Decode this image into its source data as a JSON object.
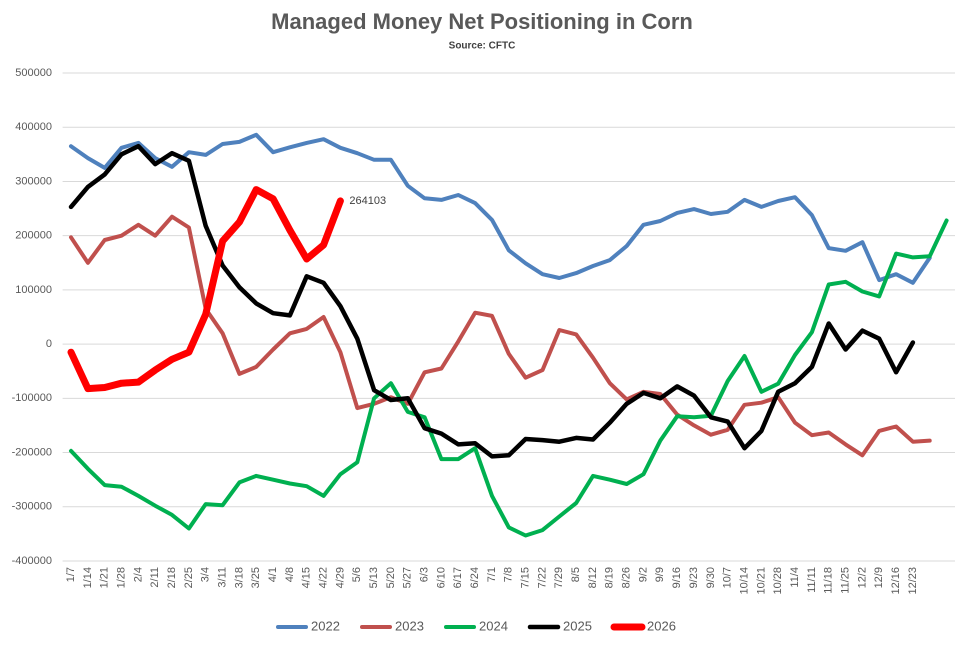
{
  "chart_data": {
    "type": "line",
    "title": "Managed Money Net Positioning in Corn",
    "subtitle": "Source: CFTC",
    "categories": [
      "1/7",
      "1/14",
      "1/21",
      "1/28",
      "2/4",
      "2/11",
      "2/18",
      "2/25",
      "3/4",
      "3/11",
      "3/18",
      "3/25",
      "4/1",
      "4/8",
      "4/15",
      "4/22",
      "4/29",
      "5/6",
      "5/13",
      "5/20",
      "5/27",
      "6/3",
      "6/10",
      "6/17",
      "6/24",
      "7/1",
      "7/8",
      "7/15",
      "7/22",
      "7/29",
      "8/5",
      "8/12",
      "8/19",
      "8/26",
      "9/2",
      "9/9",
      "9/16",
      "9/23",
      "9/30",
      "10/7",
      "10/14",
      "10/21",
      "10/28",
      "11/4",
      "11/11",
      "11/18",
      "11/25",
      "12/2",
      "12/9",
      "12/16",
      "12/23",
      null,
      null
    ],
    "series": [
      {
        "name": "2022",
        "color": "#4f81bd",
        "width": 4,
        "values": [
          365000,
          343000,
          325000,
          362000,
          371000,
          343000,
          327000,
          354000,
          349000,
          369000,
          373000,
          386000,
          354000,
          363000,
          371000,
          378000,
          362000,
          352000,
          340000,
          340000,
          292000,
          269000,
          266000,
          275000,
          260000,
          229000,
          173000,
          149000,
          129000,
          122000,
          131000,
          144000,
          155000,
          181000,
          220000,
          227000,
          242000,
          249000,
          240000,
          244000,
          266000,
          253000,
          264000,
          271000,
          238000,
          177000,
          172000,
          188000,
          118000,
          129000,
          113000,
          159000,
          null
        ]
      },
      {
        "name": "2023",
        "color": "#c0504d",
        "width": 4,
        "values": [
          197000,
          150000,
          192000,
          200000,
          220000,
          200000,
          235000,
          215000,
          65000,
          20000,
          -55000,
          -42000,
          -10000,
          20000,
          28000,
          50000,
          -15000,
          -118000,
          -110000,
          -98000,
          -110000,
          -52000,
          -45000,
          5000,
          58000,
          52000,
          -18000,
          -62000,
          -48000,
          26000,
          18000,
          -25000,
          -72000,
          -102000,
          -88000,
          -92000,
          -130000,
          -150000,
          -167000,
          -158000,
          -112000,
          -108000,
          -98000,
          -145000,
          -168000,
          -163000,
          -185000,
          -205000,
          -160000,
          -152000,
          -180000,
          -178000,
          null
        ]
      },
      {
        "name": "2024",
        "color": "#00b050",
        "width": 4,
        "values": [
          -197000,
          -230000,
          -260000,
          -263000,
          -280000,
          -298000,
          -315000,
          -340000,
          -295000,
          -297000,
          -255000,
          -243000,
          -250000,
          -257000,
          -262000,
          -280000,
          -240000,
          -218000,
          -100000,
          -72000,
          -125000,
          -135000,
          -212000,
          -212000,
          -192000,
          -280000,
          -338000,
          -353000,
          -343000,
          -318000,
          -293000,
          -243000,
          -250000,
          -258000,
          -240000,
          -178000,
          -133000,
          -135000,
          -132000,
          -68000,
          -22000,
          -88000,
          -73000,
          -20000,
          22000,
          110000,
          115000,
          97000,
          88000,
          167000,
          160000,
          162000,
          228000
        ]
      },
      {
        "name": "2025",
        "color": "#000000",
        "width": 4.5,
        "values": [
          253000,
          290000,
          313000,
          350000,
          365000,
          332000,
          352000,
          338000,
          218000,
          145000,
          105000,
          75000,
          57000,
          53000,
          125000,
          113000,
          70000,
          10000,
          -85000,
          -103000,
          -100000,
          -155000,
          -165000,
          -185000,
          -183000,
          -207000,
          -205000,
          -175000,
          -177000,
          -180000,
          -173000,
          -176000,
          -145000,
          -110000,
          -90000,
          -100000,
          -78000,
          -95000,
          -135000,
          -143000,
          -192000,
          -160000,
          -88000,
          -72000,
          -42000,
          38000,
          -10000,
          25000,
          10000,
          -52000,
          3000,
          null,
          null
        ]
      },
      {
        "name": "2026",
        "color": "#ff0000",
        "width": 7,
        "values": [
          -15000,
          -82000,
          -80000,
          -72000,
          -70000,
          -48000,
          -28000,
          -15000,
          55000,
          190000,
          225000,
          285000,
          268000,
          210000,
          157000,
          183000,
          264103,
          null,
          null,
          null,
          null,
          null,
          null,
          null,
          null,
          null,
          null,
          null,
          null,
          null,
          null,
          null,
          null,
          null,
          null,
          null,
          null,
          null,
          null,
          null,
          null,
          null,
          null,
          null,
          null,
          null,
          null,
          null,
          null,
          null,
          null,
          null,
          null
        ]
      }
    ],
    "ylim": [
      -400000,
      500000
    ],
    "yticks": [
      -400000,
      -300000,
      -200000,
      -100000,
      0,
      100000,
      200000,
      300000,
      400000,
      500000
    ],
    "grid": true,
    "legend": "bottom"
  }
}
